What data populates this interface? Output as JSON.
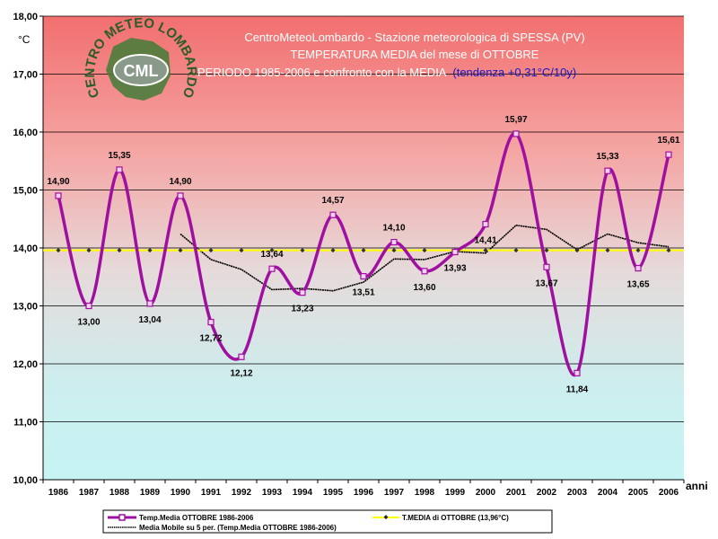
{
  "chart_data": {
    "type": "line",
    "title_lines": [
      "CentroMeteoLombardo - Stazione meteorologica di SPESSA (PV)",
      "TEMPERATURA MEDIA del mese di OTTOBRE",
      "PERIODO 1985-2006 e confronto con la MEDIA"
    ],
    "trend_note": "(tendenza +0,31°C/10y)",
    "ylabel": "°C",
    "xlabel": "anni",
    "ylim": [
      10,
      18
    ],
    "y_ticks": [
      "10,00",
      "11,00",
      "12,00",
      "13,00",
      "14,00",
      "15,00",
      "16,00",
      "17,00",
      "18,00"
    ],
    "categories": [
      "1986",
      "1987",
      "1988",
      "1989",
      "1990",
      "1991",
      "1992",
      "1993",
      "1994",
      "1995",
      "1996",
      "1997",
      "1998",
      "1999",
      "2000",
      "2001",
      "2002",
      "2003",
      "2004",
      "2005",
      "2006"
    ],
    "grid": true,
    "background": "vertical gradient red (top) to light cyan (bottom)",
    "series": [
      {
        "name": "Temp.Media OTTOBRE 1986-2006",
        "color": "#a010a0",
        "style": "smooth line with square markers",
        "values": [
          14.9,
          13.0,
          15.35,
          13.04,
          14.9,
          12.72,
          12.12,
          13.64,
          13.23,
          14.57,
          13.51,
          14.1,
          13.6,
          13.93,
          14.41,
          15.97,
          13.67,
          11.84,
          15.33,
          13.65,
          15.61
        ],
        "labels": [
          "14,90",
          "13,00",
          "15,35",
          "13,04",
          "14,90",
          "12,72",
          "12,12",
          "13,64",
          "13,23",
          "14,57",
          "13,51",
          "14,10",
          "13,60",
          "13,93",
          "14,41",
          "15,97",
          "13,67",
          "11,84",
          "15,33",
          "13,65",
          "15,61"
        ]
      },
      {
        "name": "T.MEDIA di OTTOBRE (13,96°C)",
        "color": "#ffff00",
        "style": "flat line with small diamond markers",
        "values": [
          13.96,
          13.96,
          13.96,
          13.96,
          13.96,
          13.96,
          13.96,
          13.96,
          13.96,
          13.96,
          13.96,
          13.96,
          13.96,
          13.96,
          13.96,
          13.96,
          13.96,
          13.96,
          13.96,
          13.96,
          13.96
        ]
      },
      {
        "name": "Media Mobile su 5 per. (Temp.Media OTTOBRE 1986-2006)",
        "color": "#000000",
        "style": "moving average line",
        "values": [
          null,
          null,
          null,
          null,
          14.24,
          13.8,
          13.63,
          13.28,
          13.3,
          13.26,
          13.41,
          13.81,
          13.8,
          13.94,
          13.91,
          14.39,
          14.32,
          13.97,
          14.24,
          14.09,
          14.02
        ]
      }
    ]
  },
  "logo": {
    "arc_top": "CENTRO METEO LOMBARDO",
    "center": "CML"
  },
  "legend": {
    "entries": [
      "Temp.Media OTTOBRE 1986-2006",
      "T.MEDIA di OTTOBRE (13,96°C)",
      "Media Mobile su 5 per. (Temp.Media OTTOBRE 1986-2006)"
    ]
  }
}
